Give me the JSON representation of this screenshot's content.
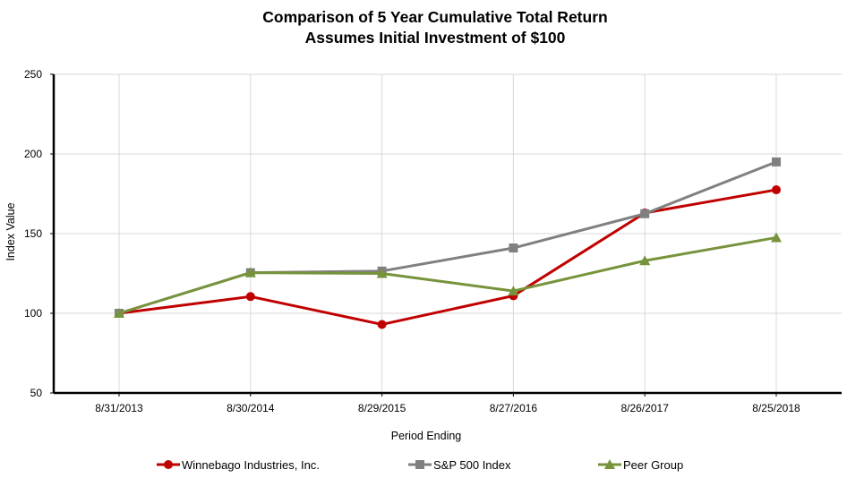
{
  "chart_data": {
    "type": "line",
    "title": "Comparison of 5 Year Cumulative Total Return",
    "subtitle": "Assumes Initial Investment of $100",
    "xlabel": "Period Ending",
    "ylabel": "Index Value",
    "ylim": [
      50,
      250
    ],
    "yticks": [
      "50",
      "100",
      "150",
      "200",
      "250"
    ],
    "categories": [
      "8/31/2013",
      "8/30/2014",
      "8/29/2015",
      "8/27/2016",
      "8/26/2017",
      "8/25/2018"
    ],
    "grid": true,
    "legend_position": "bottom",
    "series": [
      {
        "name": "Winnebago Industries, Inc.",
        "values": [
          100,
          110.5,
          93,
          111,
          163,
          177.5
        ],
        "color": "#c00000",
        "marker": "circle"
      },
      {
        "name": "S&P 500 Index",
        "values": [
          100,
          125.5,
          126.5,
          141,
          162.5,
          195
        ],
        "color": "#808080",
        "marker": "square"
      },
      {
        "name": "Peer Group",
        "values": [
          100,
          125.5,
          125,
          114,
          133,
          147.5
        ],
        "color": "#77933c",
        "marker": "triangle"
      }
    ]
  }
}
